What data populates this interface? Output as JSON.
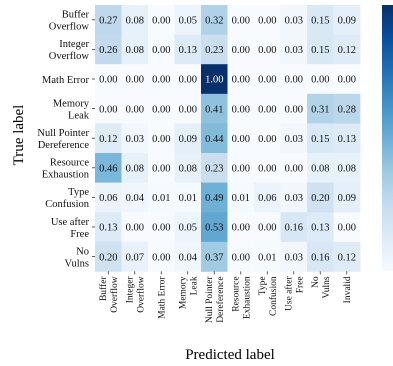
{
  "chart_data": {
    "type": "heatmap",
    "xlabel": "Predicted label",
    "ylabel": "True label",
    "row_labels": [
      [
        "Buffer",
        "Overflow"
      ],
      [
        "Integer",
        "Overflow"
      ],
      [
        "Math Error"
      ],
      [
        "Memory",
        "Leak"
      ],
      [
        "Null Pointer",
        "Dereference"
      ],
      [
        "Resource",
        "Exhaustion"
      ],
      [
        "Type",
        "Confusion"
      ],
      [
        "Use after",
        "Free"
      ],
      [
        "No",
        "Vulns"
      ]
    ],
    "col_labels": [
      [
        "Buffer",
        "Overflow"
      ],
      [
        "Integer",
        "Overflow"
      ],
      [
        "Math Error"
      ],
      [
        "Memory",
        "Leak"
      ],
      [
        "Null Pointer",
        "Dereference"
      ],
      [
        "Resource",
        "Exhaustion"
      ],
      [
        "Type",
        "Confusion"
      ],
      [
        "Use after",
        "Free"
      ],
      [
        "No",
        "Vulns"
      ],
      [
        "Invalid"
      ]
    ],
    "values": [
      [
        0.27,
        0.08,
        0.0,
        0.05,
        0.32,
        0.0,
        0.0,
        0.03,
        0.15,
        0.09
      ],
      [
        0.26,
        0.08,
        0.0,
        0.13,
        0.23,
        0.0,
        0.0,
        0.03,
        0.15,
        0.12
      ],
      [
        0.0,
        0.0,
        0.0,
        0.0,
        1.0,
        0.0,
        0.0,
        0.0,
        0.0,
        0.0
      ],
      [
        0.0,
        0.0,
        0.0,
        0.0,
        0.41,
        0.0,
        0.0,
        0.0,
        0.31,
        0.28
      ],
      [
        0.12,
        0.03,
        0.0,
        0.09,
        0.44,
        0.0,
        0.0,
        0.03,
        0.15,
        0.13
      ],
      [
        0.46,
        0.08,
        0.0,
        0.08,
        0.23,
        0.0,
        0.0,
        0.0,
        0.08,
        0.08
      ],
      [
        0.06,
        0.04,
        0.01,
        0.01,
        0.49,
        0.01,
        0.06,
        0.03,
        0.2,
        0.09
      ],
      [
        0.13,
        0.0,
        0.0,
        0.05,
        0.53,
        0.0,
        0.0,
        0.16,
        0.13,
        0.0
      ],
      [
        0.2,
        0.07,
        0.0,
        0.04,
        0.37,
        0.0,
        0.01,
        0.03,
        0.16,
        0.12
      ]
    ],
    "value_range": [
      0,
      1
    ],
    "colormap": "Blues",
    "colorbar": true,
    "colors": {
      "low": "#f7fbff",
      "high": "#08306b"
    }
  }
}
